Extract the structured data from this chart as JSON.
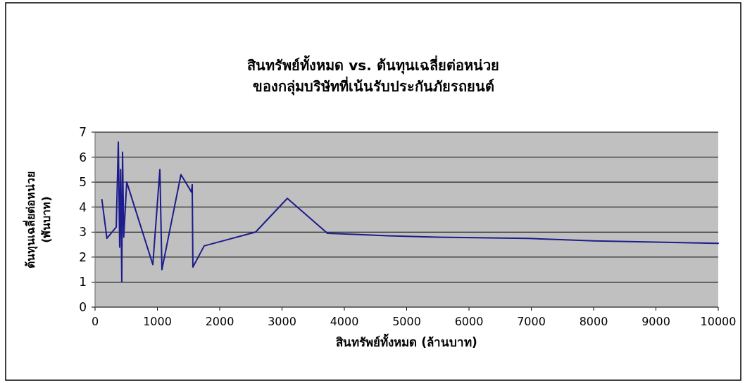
{
  "chart_data": {
    "type": "line",
    "title": "สินทรัพย์ทั้งหมด vs. ต้นทุนเฉลี่ยต่อหน่วย ของกลุ่มบริษัทที่เน้นรับประกันภัยรถยนต์",
    "xlabel": "สินทรัพย์ทั้งหมด (ล้านบาท)",
    "ylabel": "ต้นทุนเฉลี่ยต่อหน่วย (พันบาท)",
    "series": [
      {
        "color": "#1c1c8c",
        "x": [
          110,
          190,
          340,
          373,
          395,
          410,
          429,
          441,
          460,
          508,
          927,
          1040,
          1073,
          1378,
          1548,
          1559,
          1570,
          1751,
          2576,
          3085,
          3729,
          4237,
          4690,
          5500,
          6950,
          8000,
          10000
        ],
        "values": [
          4.3,
          2.75,
          3.2,
          6.6,
          2.4,
          5.5,
          1.0,
          6.2,
          2.8,
          5.0,
          1.7,
          5.5,
          1.5,
          5.3,
          4.6,
          4.9,
          1.6,
          2.45,
          3.0,
          4.35,
          2.95,
          2.9,
          2.85,
          2.8,
          2.75,
          2.65,
          2.55
        ]
      }
    ],
    "xlim": [
      0,
      10000
    ],
    "ylim": [
      0,
      7
    ],
    "xticks": [
      0,
      1000,
      2000,
      3000,
      4000,
      5000,
      6000,
      7000,
      8000,
      9000,
      10000
    ],
    "yticks": [
      0,
      1,
      2,
      3,
      4,
      5,
      6,
      7
    ],
    "grid": "y",
    "marker": "none",
    "line_style": "solid"
  }
}
